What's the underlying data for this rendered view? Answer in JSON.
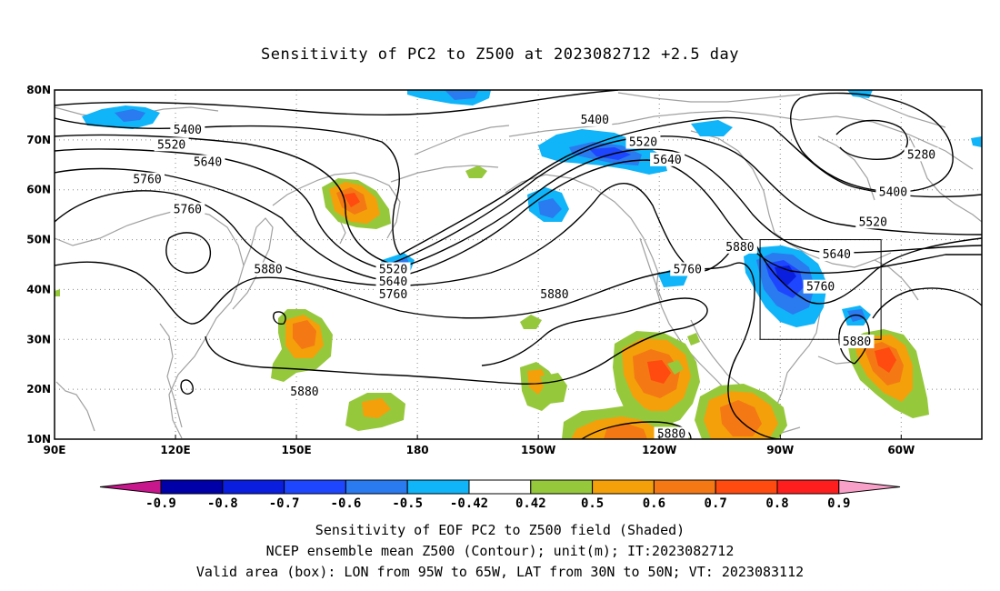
{
  "title": "Sensitivity of PC2 to Z500 at 2023082712 +2.5 day",
  "captions": [
    "Sensitivity of EOF PC2 to Z500 field (Shaded)",
    "NCEP ensemble mean Z500 (Contour); unit(m); IT:2023082712",
    "Valid area (box): LON from 95W to 65W, LAT from 30N to 50N; VT: 2023083112"
  ],
  "map": {
    "lon_range": [
      90,
      320
    ],
    "lat_range": [
      10,
      80
    ],
    "lon_tick_labels": [
      "90E",
      "120E",
      "150E",
      "180",
      "150W",
      "120W",
      "90W",
      "60W"
    ],
    "lat_tick_labels": [
      "10N",
      "20N",
      "30N",
      "40N",
      "50N",
      "60N",
      "70N",
      "80N"
    ],
    "grid": "dotted",
    "valid_box": {
      "lon": [
        265,
        295
      ],
      "lat": [
        30,
        50
      ]
    },
    "contour_labels": [
      {
        "text": "5400",
        "lon": 123,
        "lat": 72
      },
      {
        "text": "5520",
        "lon": 119,
        "lat": 69
      },
      {
        "text": "5640",
        "lon": 128,
        "lat": 65.5
      },
      {
        "text": "5760",
        "lon": 113,
        "lat": 62
      },
      {
        "text": "5760",
        "lon": 123,
        "lat": 56
      },
      {
        "text": "5880",
        "lon": 143,
        "lat": 44
      },
      {
        "text": "5880",
        "lon": 152,
        "lat": 19.5
      },
      {
        "text": "5520",
        "lon": 174,
        "lat": 44
      },
      {
        "text": "5640",
        "lon": 174,
        "lat": 41.5
      },
      {
        "text": "5760",
        "lon": 174,
        "lat": 39
      },
      {
        "text": "5880",
        "lon": 214,
        "lat": 39
      },
      {
        "text": "5400",
        "lon": 224,
        "lat": 74
      },
      {
        "text": "5520",
        "lon": 236,
        "lat": 69.5
      },
      {
        "text": "5640",
        "lon": 242,
        "lat": 66
      },
      {
        "text": "5760",
        "lon": 247,
        "lat": 44
      },
      {
        "text": "5880",
        "lon": 260,
        "lat": 48.5
      },
      {
        "text": "5640",
        "lon": 284,
        "lat": 47
      },
      {
        "text": "5760",
        "lon": 280,
        "lat": 40.5
      },
      {
        "text": "5520",
        "lon": 293,
        "lat": 53.5
      },
      {
        "text": "5400",
        "lon": 298,
        "lat": 59.5
      },
      {
        "text": "5280",
        "lon": 305,
        "lat": 67
      },
      {
        "text": "5880",
        "lon": 289,
        "lat": 29.5
      },
      {
        "text": "5880",
        "lon": 243,
        "lat": 11
      }
    ]
  },
  "colorbar": {
    "labels": [
      "-0.9",
      "-0.8",
      "-0.7",
      "-0.6",
      "-0.5",
      "-0.42",
      "0.42",
      "0.5",
      "0.6",
      "0.7",
      "0.8",
      "0.9"
    ],
    "colors": [
      "#0000a8",
      "#0a1ee0",
      "#1e46ff",
      "#2a7af0",
      "#10b4f8",
      "#ffffff",
      "#96c83c",
      "#f4a00a",
      "#f47814",
      "#ff4a10",
      "#ff1e1e"
    ],
    "under_color": "#c8168c",
    "over_color": "#f8a0c8"
  }
}
